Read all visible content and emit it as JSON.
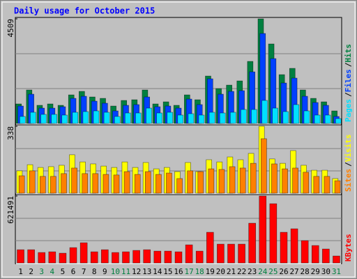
{
  "chart_data": [
    {
      "type": "bar",
      "title": "Daily usage for October 2015",
      "ylim": [
        0,
        4509
      ],
      "yticks": [
        4509
      ],
      "legend_separator": "/",
      "series": [
        {
          "name": "Hits",
          "color": "#008040",
          "values": [
            842,
            1443,
            782,
            842,
            782,
            1232,
            1383,
            1142,
            1082,
            751,
            992,
            1022,
            1443,
            842,
            932,
            782,
            1232,
            1022,
            2044,
            1503,
            1653,
            1834,
            2675,
            4509,
            3427,
            2104,
            2375,
            1443,
            1082,
            932,
            541
          ]
        },
        {
          "name": "Files",
          "color": "#0040ff",
          "values": [
            751,
            1262,
            661,
            661,
            721,
            1082,
            1172,
            962,
            872,
            541,
            782,
            812,
            1142,
            721,
            751,
            661,
            1052,
            812,
            1924,
            1262,
            1383,
            1413,
            2224,
            3878,
            2796,
            1743,
            1954,
            1172,
            902,
            782,
            301
          ]
        },
        {
          "name": "Pages",
          "color": "#00e0ff",
          "values": [
            301,
            481,
            391,
            391,
            361,
            481,
            511,
            541,
            481,
            301,
            451,
            451,
            661,
            451,
            481,
            361,
            421,
            361,
            481,
            451,
            481,
            601,
            601,
            992,
            661,
            511,
            812,
            541,
            361,
            361,
            210
          ]
        }
      ]
    },
    {
      "type": "bar",
      "ylim": [
        0,
        338
      ],
      "yticks": [
        338
      ],
      "legend_separator": "/",
      "series": [
        {
          "name": "Visits",
          "color": "#ffff00",
          "values": [
            113,
            144,
            130,
            134,
            141,
            194,
            158,
            148,
            137,
            130,
            158,
            130,
            155,
            123,
            130,
            109,
            155,
            109,
            169,
            158,
            183,
            169,
            201,
            338,
            173,
            151,
            215,
            141,
            116,
            116,
            74
          ]
        },
        {
          "name": "Sites",
          "color": "#ff8000",
          "values": [
            88,
            113,
            85,
            85,
            99,
            127,
            99,
            99,
            95,
            92,
            109,
            95,
            109,
            95,
            102,
            74,
            113,
            109,
            123,
            120,
            134,
            127,
            151,
            275,
            148,
            123,
            127,
            106,
            85,
            85,
            63
          ]
        }
      ]
    },
    {
      "type": "bar",
      "ylim": [
        0,
        621491
      ],
      "yticks": [
        621491
      ],
      "categories": [
        "1",
        "2",
        "3",
        "4",
        "5",
        "6",
        "7",
        "8",
        "9",
        "10",
        "11",
        "12",
        "13",
        "14",
        "15",
        "16",
        "17",
        "18",
        "19",
        "20",
        "21",
        "22",
        "23",
        "24",
        "25",
        "26",
        "27",
        "28",
        "29",
        "30",
        "31"
      ],
      "category_colors": [
        "#000000",
        "#000000",
        "#008040",
        "#008040",
        "#000000",
        "#000000",
        "#000000",
        "#000000",
        "#000000",
        "#008040",
        "#008040",
        "#000000",
        "#000000",
        "#000000",
        "#000000",
        "#000000",
        "#008040",
        "#008040",
        "#000000",
        "#000000",
        "#000000",
        "#000000",
        "#000000",
        "#008040",
        "#008040",
        "#000000",
        "#000000",
        "#000000",
        "#000000",
        "#000000",
        "#008040"
      ],
      "series": [
        {
          "name": "KBytes",
          "color": "#ff0000",
          "values": [
            123000,
            123000,
            97100,
            103600,
            90600,
            142400,
            187700,
            103600,
            123000,
            97100,
            103600,
            116500,
            123000,
            110000,
            110000,
            103600,
            168300,
            110000,
            284800,
            174800,
            174800,
            174800,
            369000,
            621491,
            550000,
            284800,
            317200,
            207200,
            161800,
            129500,
            64700
          ]
        }
      ]
    }
  ]
}
